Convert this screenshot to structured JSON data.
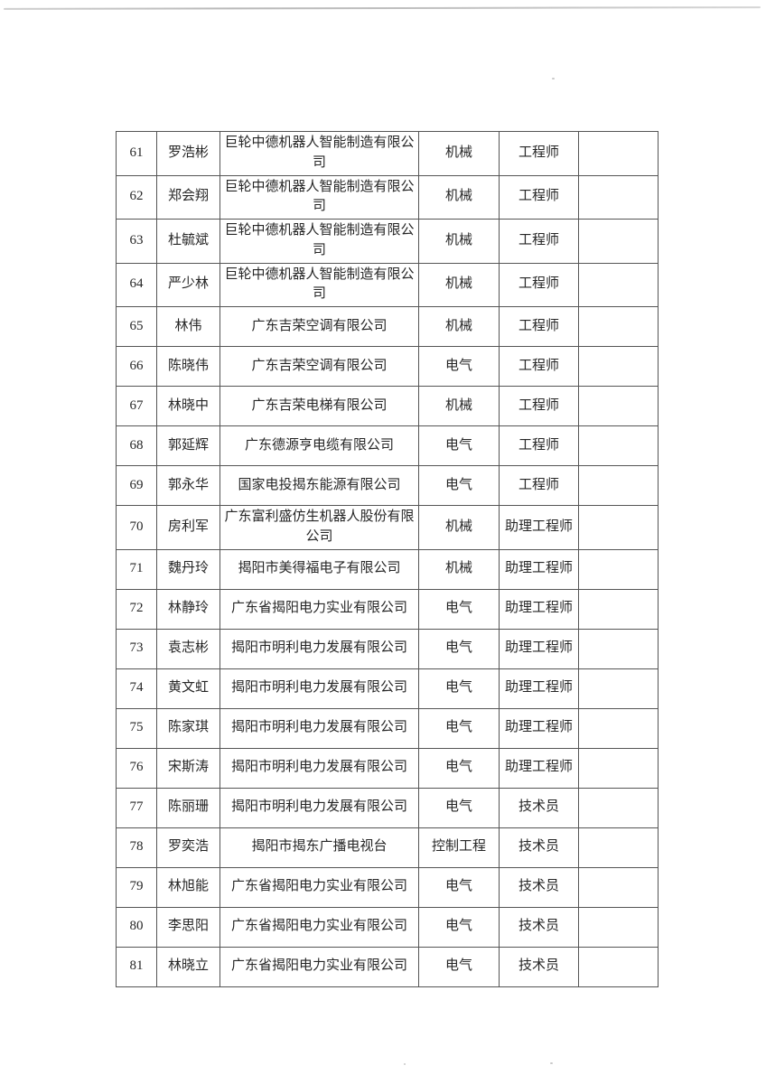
{
  "page": {
    "background": "#ffffff",
    "border_color": "#555555",
    "text_color": "#262626",
    "artifact_line_color": "#c4c4c4"
  },
  "table": {
    "rows": [
      {
        "no": "61",
        "name": "罗浩彬",
        "company": "巨轮中德机器人智能制造有限公司",
        "field": "机械",
        "title": "工程师",
        "remark": ""
      },
      {
        "no": "62",
        "name": "郑会翔",
        "company": "巨轮中德机器人智能制造有限公司",
        "field": "机械",
        "title": "工程师",
        "remark": ""
      },
      {
        "no": "63",
        "name": "杜毓斌",
        "company": "巨轮中德机器人智能制造有限公司",
        "field": "机械",
        "title": "工程师",
        "remark": ""
      },
      {
        "no": "64",
        "name": "严少林",
        "company": "巨轮中德机器人智能制造有限公司",
        "field": "机械",
        "title": "工程师",
        "remark": ""
      },
      {
        "no": "65",
        "name": "林伟",
        "company": "广东吉荣空调有限公司",
        "field": "机械",
        "title": "工程师",
        "remark": ""
      },
      {
        "no": "66",
        "name": "陈晓伟",
        "company": "广东吉荣空调有限公司",
        "field": "电气",
        "title": "工程师",
        "remark": ""
      },
      {
        "no": "67",
        "name": "林晓中",
        "company": "广东吉荣电梯有限公司",
        "field": "机械",
        "title": "工程师",
        "remark": ""
      },
      {
        "no": "68",
        "name": "郭延辉",
        "company": "广东德源亨电缆有限公司",
        "field": "电气",
        "title": "工程师",
        "remark": ""
      },
      {
        "no": "69",
        "name": "郭永华",
        "company": "国家电投揭东能源有限公司",
        "field": "电气",
        "title": "工程师",
        "remark": ""
      },
      {
        "no": "70",
        "name": "房利军",
        "company": "广东富利盛仿生机器人股份有限公司",
        "field": "机械",
        "title": "助理工程师",
        "remark": ""
      },
      {
        "no": "71",
        "name": "魏丹玲",
        "company": "揭阳市美得福电子有限公司",
        "field": "机械",
        "title": "助理工程师",
        "remark": ""
      },
      {
        "no": "72",
        "name": "林静玲",
        "company": "广东省揭阳电力实业有限公司",
        "field": "电气",
        "title": "助理工程师",
        "remark": ""
      },
      {
        "no": "73",
        "name": "袁志彬",
        "company": "揭阳市明利电力发展有限公司",
        "field": "电气",
        "title": "助理工程师",
        "remark": ""
      },
      {
        "no": "74",
        "name": "黄文虹",
        "company": "揭阳市明利电力发展有限公司",
        "field": "电气",
        "title": "助理工程师",
        "remark": ""
      },
      {
        "no": "75",
        "name": "陈家琪",
        "company": "揭阳市明利电力发展有限公司",
        "field": "电气",
        "title": "助理工程师",
        "remark": ""
      },
      {
        "no": "76",
        "name": "宋斯涛",
        "company": "揭阳市明利电力发展有限公司",
        "field": "电气",
        "title": "助理工程师",
        "remark": ""
      },
      {
        "no": "77",
        "name": "陈丽珊",
        "company": "揭阳市明利电力发展有限公司",
        "field": "电气",
        "title": "技术员",
        "remark": ""
      },
      {
        "no": "78",
        "name": "罗奕浩",
        "company": "揭阳市揭东广播电视台",
        "field": "控制工程",
        "title": "技术员",
        "remark": ""
      },
      {
        "no": "79",
        "name": "林旭能",
        "company": "广东省揭阳电力实业有限公司",
        "field": "电气",
        "title": "技术员",
        "remark": ""
      },
      {
        "no": "80",
        "name": "李思阳",
        "company": "广东省揭阳电力实业有限公司",
        "field": "电气",
        "title": "技术员",
        "remark": ""
      },
      {
        "no": "81",
        "name": "林晓立",
        "company": "广东省揭阳电力实业有限公司",
        "field": "电气",
        "title": "技术员",
        "remark": ""
      }
    ]
  }
}
